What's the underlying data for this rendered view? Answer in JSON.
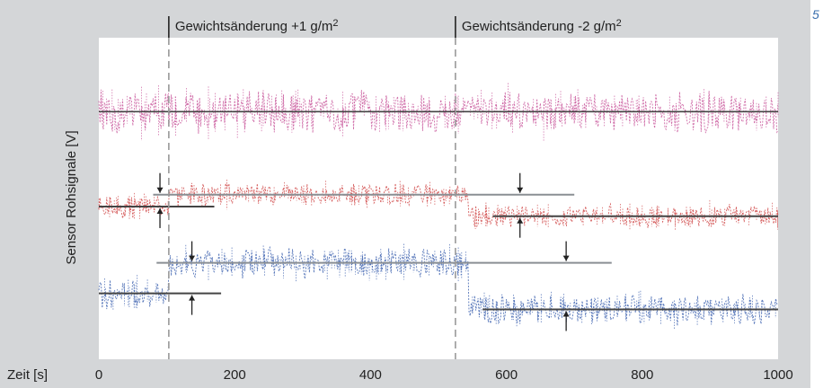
{
  "figure_number": "5",
  "colors": {
    "panel_background": "#d4d6d8",
    "plot_background": "#ffffff",
    "pink": "#c8559a",
    "red": "#cf4444",
    "blue": "#3a5fae",
    "mean_line": "#444444",
    "level_line": "#8a8f94",
    "marker_line": "#999999"
  },
  "chart_data": {
    "type": "line",
    "title": "",
    "xlabel": "Zeit [s]",
    "ylabel": "Sensor Rohsignale [V]",
    "xlim": [
      0,
      1000
    ],
    "xticks": [
      0,
      200,
      400,
      600,
      800,
      1000
    ],
    "yticks": [],
    "grid": false,
    "events": [
      {
        "x": 103,
        "label": "Gewichtsänderung +1 g/m",
        "sup": "2"
      },
      {
        "x": 525,
        "label": "Gewichtsänderung -2 g/m",
        "sup": "2"
      }
    ],
    "series": [
      {
        "color": "pink",
        "center": 0.23,
        "amplitude": 0.055,
        "levels": [
          {
            "x0": 0,
            "x1": 1000,
            "y": 0.23
          }
        ]
      },
      {
        "color": "red",
        "center": 0.5,
        "amplitude": 0.03,
        "levels": [
          {
            "x0": 0,
            "x1": 170,
            "y": 0.525
          },
          {
            "x0": 80,
            "x1": 700,
            "y": 0.488
          },
          {
            "x0": 580,
            "x1": 1000,
            "y": 0.555
          }
        ]
      },
      {
        "color": "blue",
        "center": 0.74,
        "amplitude": 0.04,
        "levels": [
          {
            "x0": 0,
            "x1": 180,
            "y": 0.795
          },
          {
            "x0": 85,
            "x1": 755,
            "y": 0.7
          },
          {
            "x0": 565,
            "x1": 1000,
            "y": 0.845
          }
        ]
      }
    ]
  }
}
